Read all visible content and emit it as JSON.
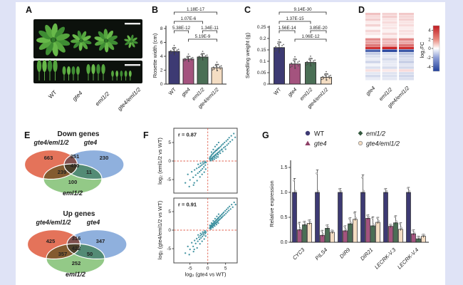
{
  "colors": {
    "page_bg": "#dfe3f6",
    "paper_bg": "#ffffff",
    "bar_series": [
      "#3d3a73",
      "#a4537e",
      "#4a6f55",
      "#f4ddc3"
    ],
    "bar_stroke": "#2b2b2b",
    "scatter_point": "#2b8696",
    "dashed_line": "#e0604f",
    "heat_pos": "#c01a20",
    "heat_neg": "#21409a",
    "venn_fill": {
      "a": "#e4735a",
      "b": "#8fb0dd",
      "c": "#93c987"
    },
    "venn_label": {
      "a": "#d93a2b",
      "b": "#5b8bd9",
      "c": "#4aa34a"
    },
    "photo_bg": "#0c110c",
    "leaf_greens": [
      "#3e8c33",
      "#55a53e",
      "#68b94a"
    ]
  },
  "panel_a": {
    "label": "A",
    "genotypes": [
      "WT",
      "gte4",
      "eml1/2",
      "gte4/eml1/2"
    ]
  },
  "panel_b": {
    "label": "B",
    "chart_data": {
      "type": "bar",
      "ylabel": "Rosette width (cm)",
      "categories": [
        "WT",
        "gte4",
        "eml1/2",
        "gte4/eml1/2"
      ],
      "values": [
        4.7,
        3.6,
        3.9,
        2.35
      ],
      "errors": [
        0.55,
        0.4,
        0.5,
        0.5
      ],
      "ylim": [
        0,
        8
      ],
      "yticks": [
        0,
        2,
        4,
        6,
        8
      ],
      "ytick_labels": [
        "0",
        "2",
        "4",
        "6",
        "8"
      ],
      "comparisons": [
        {
          "a": 0,
          "b": 3,
          "p": "1.18E-17"
        },
        {
          "a": 0,
          "b": 2,
          "p": "1.07E-6"
        },
        {
          "a": 0,
          "b": 1,
          "p": "5.38E-12"
        },
        {
          "a": 2,
          "b": 3,
          "p": "1.34E-11"
        },
        {
          "a": 1,
          "b": 3,
          "p": "5.19E-9"
        }
      ]
    }
  },
  "panel_c": {
    "label": "C",
    "chart_data": {
      "type": "bar",
      "ylabel": "Seedling weight (g)",
      "categories": [
        "WT",
        "gte4",
        "eml1/2",
        "gte4/eml1/2"
      ],
      "values": [
        0.16,
        0.088,
        0.095,
        0.03
      ],
      "errors": [
        0.025,
        0.022,
        0.018,
        0.015
      ],
      "ylim": [
        0,
        0.25
      ],
      "yticks": [
        0,
        0.05,
        0.1,
        0.15,
        0.2,
        0.25
      ],
      "ytick_labels": [
        "0",
        "0.05",
        "0.1",
        "0.15",
        "0.2",
        "0.25"
      ],
      "comparisons": [
        {
          "a": 0,
          "b": 3,
          "p": "9.14E-30"
        },
        {
          "a": 0,
          "b": 2,
          "p": "1.37E-15"
        },
        {
          "a": 0,
          "b": 1,
          "p": "1.56E-14"
        },
        {
          "a": 2,
          "b": 3,
          "p": "3.85E-20"
        },
        {
          "a": 1,
          "b": 3,
          "p": "1.06E-12"
        }
      ]
    }
  },
  "panel_d": {
    "label": "D",
    "chart_data": {
      "type": "heatmap",
      "columns": [
        "gte4",
        "eml1/2",
        "gte4/eml1/2"
      ],
      "values": [
        [
          1.4,
          1.0,
          1.2
        ],
        [
          0.8,
          1.1,
          0.9
        ],
        [
          1.1,
          0.6,
          1.0
        ],
        [
          0.4,
          0.8,
          0.6
        ],
        [
          1.0,
          0.5,
          0.8
        ],
        [
          0.2,
          0.6,
          0.4
        ],
        [
          0.9,
          0.3,
          0.7
        ],
        [
          0.5,
          0.9,
          0.6
        ],
        [
          0.1,
          0.4,
          0.3
        ],
        [
          2.6,
          1.7,
          2.8
        ],
        [
          2.2,
          1.5,
          2.0
        ],
        [
          3.0,
          2.0,
          3.2
        ],
        [
          4.6,
          4.9,
          4.7
        ],
        [
          -4.0,
          -4.7,
          -4.4
        ],
        [
          -1.3,
          -0.9,
          -1.6
        ],
        [
          -0.8,
          -0.6,
          -1.1
        ],
        [
          -0.5,
          -1.0,
          -0.9
        ],
        [
          -1.1,
          -0.6,
          -1.3
        ],
        [
          -0.3,
          -0.5,
          -0.7
        ],
        [
          -0.8,
          -0.9,
          -1.0
        ],
        [
          0.7,
          0.5,
          0.8
        ],
        [
          -0.6,
          -0.7,
          -0.9
        ],
        [
          -1.0,
          -0.8,
          -1.1
        ],
        [
          -0.5,
          -0.6,
          -0.8
        ]
      ],
      "colorbar": {
        "label": "log₂FC",
        "ticks": [
          4,
          2,
          0,
          -2,
          -4
        ],
        "tick_labels": [
          "4",
          "2",
          "0",
          "-2",
          "-4"
        ],
        "range": [
          -5,
          5
        ]
      }
    }
  },
  "panel_e": {
    "label": "E",
    "sets": {
      "a": "gte4/eml1/2",
      "b": "gte4",
      "c": "eml1/2"
    },
    "diagrams": [
      {
        "title": "Down genes",
        "counts": {
          "a_only": "663",
          "ab": "351",
          "b_only": "230",
          "abc": "430",
          "ac": "239",
          "bc": "11",
          "c_only": "100"
        }
      },
      {
        "title": "Up genes",
        "counts": {
          "a_only": "425",
          "ab": "316",
          "b_only": "347",
          "abc": "422",
          "ac": "357",
          "bc": "50",
          "c_only": "252"
        }
      }
    ]
  },
  "panel_f": {
    "label": "F",
    "xlabel": "log₂ (gte4 vs WT)",
    "xticks": [
      -5,
      0,
      5
    ],
    "yticks": [
      5,
      0,
      -5
    ],
    "plots": [
      {
        "r": "r = 0.87",
        "ylabel": "log₂ (eml1/2 vs WT)",
        "points": [
          [
            0.5,
            0.6
          ],
          [
            0.7,
            0.3
          ],
          [
            0.8,
            1.2
          ],
          [
            0.9,
            0.7
          ],
          [
            1.0,
            1.5
          ],
          [
            1.1,
            0.6
          ],
          [
            1.2,
            1.8
          ],
          [
            1.3,
            1.0
          ],
          [
            1.4,
            0.7
          ],
          [
            1.5,
            2.0
          ],
          [
            1.6,
            1.2
          ],
          [
            1.7,
            2.3
          ],
          [
            1.8,
            1.4
          ],
          [
            1.9,
            1.0
          ],
          [
            2.0,
            2.5
          ],
          [
            2.1,
            1.6
          ],
          [
            2.2,
            2.8
          ],
          [
            2.3,
            1.8
          ],
          [
            2.4,
            1.3
          ],
          [
            2.5,
            2.9
          ],
          [
            2.6,
            2.0
          ],
          [
            2.7,
            3.2
          ],
          [
            2.8,
            2.2
          ],
          [
            2.9,
            1.7
          ],
          [
            3.0,
            3.4
          ],
          [
            3.1,
            2.4
          ],
          [
            3.2,
            3.6
          ],
          [
            3.4,
            2.7
          ],
          [
            3.5,
            2.1
          ],
          [
            3.6,
            3.9
          ],
          [
            3.8,
            3.0
          ],
          [
            3.9,
            4.3
          ],
          [
            4.0,
            3.2
          ],
          [
            4.2,
            2.6
          ],
          [
            4.3,
            4.6
          ],
          [
            4.5,
            3.6
          ],
          [
            4.7,
            5.0
          ],
          [
            4.9,
            3.9
          ],
          [
            5.0,
            3.2
          ],
          [
            5.2,
            5.4
          ],
          [
            5.4,
            4.3
          ],
          [
            5.6,
            5.8
          ],
          [
            5.8,
            4.7
          ],
          [
            6.0,
            6.3
          ],
          [
            6.3,
            5.2
          ],
          [
            6.6,
            6.8
          ],
          [
            6.9,
            5.7
          ],
          [
            7.3,
            7.4
          ],
          [
            7.7,
            6.4
          ],
          [
            0.6,
            1.0
          ],
          [
            1.05,
            2.4
          ],
          [
            1.55,
            3.1
          ],
          [
            2.05,
            3.9
          ],
          [
            2.55,
            4.4
          ],
          [
            3.05,
            5.0
          ],
          [
            0.9,
            0.1
          ],
          [
            1.35,
            0.3
          ],
          [
            1.85,
            0.5
          ],
          [
            2.35,
            0.8
          ],
          [
            2.85,
            1.1
          ],
          [
            -0.5,
            -0.4
          ],
          [
            -0.7,
            -1.1
          ],
          [
            -0.9,
            -0.5
          ],
          [
            -1.1,
            -1.6
          ],
          [
            -1.3,
            -0.8
          ],
          [
            -1.5,
            -2.1
          ],
          [
            -1.7,
            -1.1
          ],
          [
            -1.9,
            -2.5
          ],
          [
            -2.1,
            -1.4
          ],
          [
            -2.3,
            -2.9
          ],
          [
            -2.5,
            -1.7
          ],
          [
            -2.8,
            -3.3
          ],
          [
            -3.1,
            -2.0
          ],
          [
            -3.4,
            -3.8
          ],
          [
            -3.7,
            -2.4
          ],
          [
            -4.1,
            -4.4
          ],
          [
            -4.5,
            -2.9
          ],
          [
            -5.0,
            -5.1
          ],
          [
            -5.6,
            -3.6
          ],
          [
            -6.3,
            -5.9
          ],
          [
            -1.0,
            -3.0
          ],
          [
            -1.6,
            -3.6
          ],
          [
            -2.2,
            -4.3
          ],
          [
            -3.0,
            -5.3
          ],
          [
            -4.0,
            -6.5
          ],
          [
            -0.8,
            -0.1
          ],
          [
            -1.4,
            -0.3
          ],
          [
            -2.0,
            -0.6
          ],
          [
            -2.7,
            -0.9
          ],
          [
            -5.2,
            -6.9
          ],
          [
            -0.6,
            -2.2
          ],
          [
            -3.8,
            -5.9
          ]
        ]
      },
      {
        "r": "r = 0.91",
        "ylabel": "log₂ (gte4/eml1/2 vs WT)",
        "points": [
          [
            0.5,
            0.5
          ],
          [
            0.7,
            0.9
          ],
          [
            0.8,
            0.6
          ],
          [
            0.9,
            1.2
          ],
          [
            1.0,
            0.8
          ],
          [
            1.1,
            1.4
          ],
          [
            1.2,
            1.0
          ],
          [
            1.3,
            1.6
          ],
          [
            1.4,
            1.1
          ],
          [
            1.5,
            1.8
          ],
          [
            1.6,
            1.3
          ],
          [
            1.7,
            2.0
          ],
          [
            1.8,
            1.5
          ],
          [
            1.9,
            2.2
          ],
          [
            2.0,
            1.7
          ],
          [
            2.1,
            2.4
          ],
          [
            2.2,
            1.9
          ],
          [
            2.3,
            2.6
          ],
          [
            2.4,
            2.0
          ],
          [
            2.5,
            2.8
          ],
          [
            2.6,
            2.2
          ],
          [
            2.7,
            3.0
          ],
          [
            2.8,
            2.4
          ],
          [
            2.9,
            3.2
          ],
          [
            3.0,
            2.6
          ],
          [
            3.1,
            3.4
          ],
          [
            3.2,
            2.8
          ],
          [
            3.4,
            3.7
          ],
          [
            3.5,
            3.0
          ],
          [
            3.6,
            3.9
          ],
          [
            3.8,
            3.3
          ],
          [
            3.9,
            4.2
          ],
          [
            4.0,
            3.5
          ],
          [
            4.2,
            4.5
          ],
          [
            4.3,
            3.8
          ],
          [
            4.5,
            4.8
          ],
          [
            4.7,
            4.1
          ],
          [
            4.9,
            5.2
          ],
          [
            5.1,
            4.5
          ],
          [
            5.3,
            5.6
          ],
          [
            5.5,
            4.9
          ],
          [
            5.7,
            6.0
          ],
          [
            5.9,
            5.3
          ],
          [
            6.1,
            6.4
          ],
          [
            6.4,
            5.7
          ],
          [
            6.7,
            6.9
          ],
          [
            7.0,
            6.2
          ],
          [
            7.4,
            7.5
          ],
          [
            7.8,
            6.9
          ],
          [
            0.6,
            1.3
          ],
          [
            1.05,
            1.9
          ],
          [
            1.55,
            2.5
          ],
          [
            2.05,
            3.1
          ],
          [
            2.55,
            3.7
          ],
          [
            3.05,
            4.3
          ],
          [
            0.9,
            0.3
          ],
          [
            1.45,
            0.7
          ],
          [
            1.95,
            1.1
          ],
          [
            2.45,
            1.5
          ],
          [
            2.95,
            1.9
          ],
          [
            -0.5,
            -0.5
          ],
          [
            -0.7,
            -0.9
          ],
          [
            -0.9,
            -0.6
          ],
          [
            -1.1,
            -1.3
          ],
          [
            -1.3,
            -0.9
          ],
          [
            -1.5,
            -1.7
          ],
          [
            -1.7,
            -1.2
          ],
          [
            -1.9,
            -2.1
          ],
          [
            -2.1,
            -1.5
          ],
          [
            -2.3,
            -2.5
          ],
          [
            -2.5,
            -1.9
          ],
          [
            -2.8,
            -3.0
          ],
          [
            -3.1,
            -2.3
          ],
          [
            -3.4,
            -3.6
          ],
          [
            -3.7,
            -2.8
          ],
          [
            -4.1,
            -4.4
          ],
          [
            -4.5,
            -3.4
          ],
          [
            -5.0,
            -5.2
          ],
          [
            -5.6,
            -4.4
          ],
          [
            -6.3,
            -6.2
          ],
          [
            -1.0,
            -2.4
          ],
          [
            -1.6,
            -3.0
          ],
          [
            -2.2,
            -3.7
          ],
          [
            -3.0,
            -4.8
          ],
          [
            -4.0,
            -5.8
          ],
          [
            -0.8,
            -0.2
          ],
          [
            -1.4,
            -0.5
          ],
          [
            -2.0,
            -0.9
          ],
          [
            -2.7,
            -1.3
          ],
          [
            -5.2,
            -6.6
          ],
          [
            -0.6,
            -1.6
          ],
          [
            -3.8,
            -5.2
          ]
        ]
      }
    ]
  },
  "panel_g": {
    "label": "G",
    "chart_data": {
      "type": "bar",
      "ylabel": "Relative expression",
      "categories": [
        "CYC3",
        "PILS4",
        "DIR9",
        "DIR21",
        "LECRK-V.3",
        "LECRK-V.4"
      ],
      "ylim": [
        0,
        1.5
      ],
      "yticks": [
        0,
        0.5,
        1.0,
        1.5
      ],
      "ytick_labels": [
        "0.0",
        "0.5",
        "1.0",
        "1.5"
      ],
      "series": [
        {
          "name": "WT",
          "marker": "circle",
          "values": [
            1.0,
            1.0,
            1.0,
            1.0,
            1.0,
            1.0
          ],
          "errors": [
            0.28,
            0.45,
            0.08,
            0.35,
            0.08,
            0.1
          ]
        },
        {
          "name": "gte4",
          "marker": "triangle",
          "values": [
            0.25,
            0.14,
            0.23,
            0.48,
            0.32,
            0.17
          ],
          "errors": [
            0.15,
            0.1,
            0.1,
            0.07,
            0.04,
            0.08
          ]
        },
        {
          "name": "eml1/2",
          "marker": "diamond",
          "values": [
            0.35,
            0.28,
            0.37,
            0.33,
            0.39,
            0.07
          ],
          "errors": [
            0.07,
            0.07,
            0.12,
            0.18,
            0.14,
            0.05
          ]
        },
        {
          "name": "gte4/eml1/2",
          "marker": "open-circle",
          "values": [
            0.38,
            0.2,
            0.46,
            0.4,
            0.26,
            0.12
          ],
          "errors": [
            0.07,
            0.04,
            0.15,
            0.1,
            0.13,
            0.04
          ]
        }
      ]
    }
  }
}
